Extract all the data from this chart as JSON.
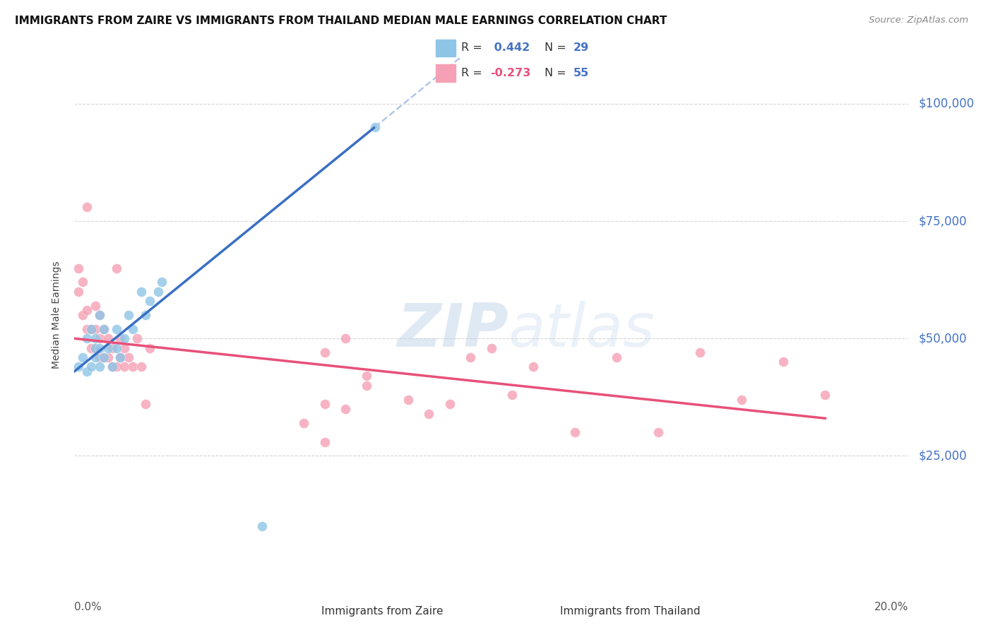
{
  "title": "IMMIGRANTS FROM ZAIRE VS IMMIGRANTS FROM THAILAND MEDIAN MALE EARNINGS CORRELATION CHART",
  "source": "Source: ZipAtlas.com",
  "ylabel": "Median Male Earnings",
  "y_tick_values": [
    25000,
    50000,
    75000,
    100000
  ],
  "y_min": 0,
  "y_max": 110000,
  "x_min": 0.0,
  "x_max": 0.2,
  "color_zaire": "#8ec5e6",
  "color_thai": "#f5a0b5",
  "color_zaire_line": "#3a6fc4",
  "color_thai_line": "#e8507a",
  "color_zaire_dash": "#b0c8e8",
  "color_ytick": "#4472c4",
  "color_grid": "#cccccc",
  "zaire_x": [
    0.001,
    0.002,
    0.003,
    0.003,
    0.004,
    0.004,
    0.005,
    0.005,
    0.005,
    0.006,
    0.006,
    0.006,
    0.007,
    0.007,
    0.008,
    0.009,
    0.01,
    0.01,
    0.011,
    0.012,
    0.013,
    0.014,
    0.016,
    0.017,
    0.018,
    0.02,
    0.021,
    0.045,
    0.072
  ],
  "zaire_y": [
    44000,
    46000,
    43000,
    50000,
    44000,
    52000,
    46000,
    48000,
    50000,
    44000,
    48000,
    55000,
    46000,
    52000,
    48000,
    44000,
    48000,
    52000,
    46000,
    50000,
    55000,
    52000,
    60000,
    55000,
    58000,
    60000,
    62000,
    10000,
    95000
  ],
  "thai_x": [
    0.001,
    0.001,
    0.002,
    0.002,
    0.003,
    0.003,
    0.003,
    0.004,
    0.004,
    0.005,
    0.005,
    0.005,
    0.006,
    0.006,
    0.006,
    0.007,
    0.007,
    0.008,
    0.008,
    0.009,
    0.009,
    0.01,
    0.01,
    0.011,
    0.011,
    0.012,
    0.012,
    0.013,
    0.014,
    0.015,
    0.016,
    0.017,
    0.018,
    0.06,
    0.06,
    0.065,
    0.07,
    0.08,
    0.09,
    0.1,
    0.11,
    0.12,
    0.13,
    0.14,
    0.15,
    0.16,
    0.17,
    0.18,
    0.06,
    0.07,
    0.065,
    0.055,
    0.085,
    0.095,
    0.105
  ],
  "thai_y": [
    60000,
    65000,
    55000,
    62000,
    52000,
    56000,
    78000,
    48000,
    52000,
    48000,
    52000,
    57000,
    46000,
    50000,
    55000,
    46000,
    52000,
    46000,
    50000,
    44000,
    48000,
    44000,
    65000,
    46000,
    50000,
    44000,
    48000,
    46000,
    44000,
    50000,
    44000,
    36000,
    48000,
    28000,
    36000,
    50000,
    40000,
    37000,
    36000,
    48000,
    44000,
    30000,
    46000,
    30000,
    47000,
    37000,
    45000,
    38000,
    47000,
    42000,
    35000,
    32000,
    34000,
    46000,
    38000
  ],
  "watermark_zip": "ZIP",
  "watermark_atlas": "atlas",
  "legend_r1": "R = ",
  "legend_v1": " 0.442",
  "legend_n1": "N = ",
  "legend_nv1": "29",
  "legend_r2": "R = ",
  "legend_v2": "-0.273",
  "legend_n2": "N = ",
  "legend_nv2": "55"
}
